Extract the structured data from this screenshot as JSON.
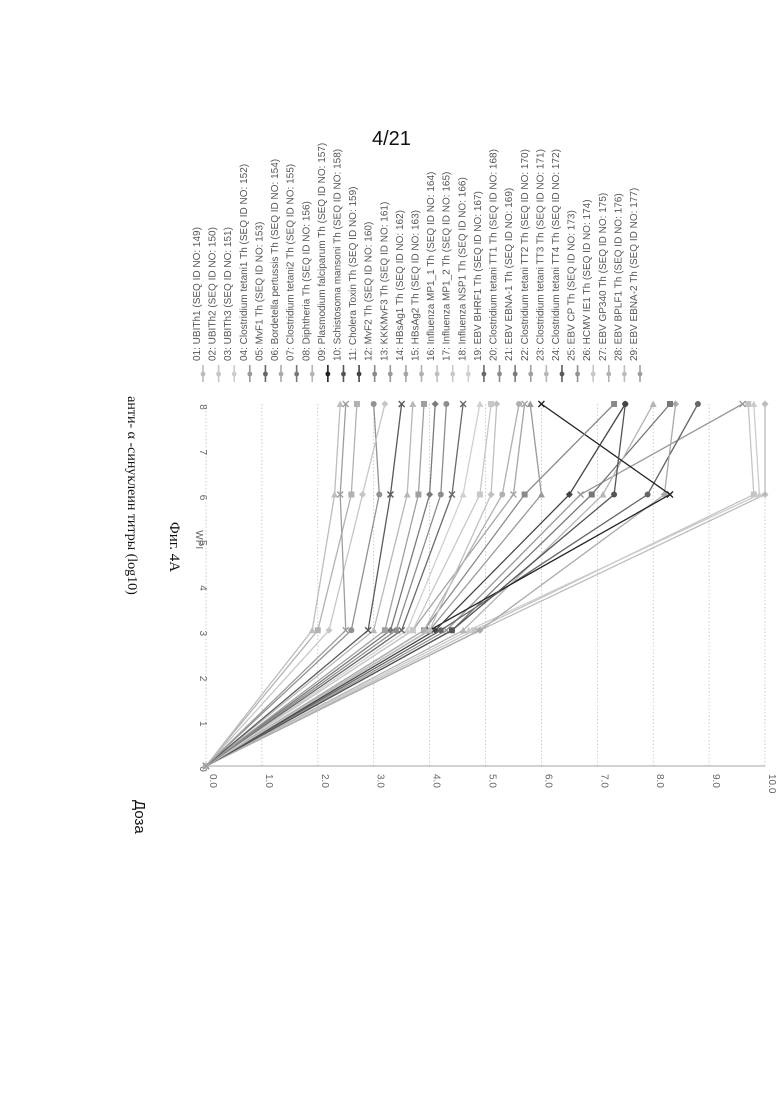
{
  "page": {
    "number": "4/21"
  },
  "chart_data": {
    "type": "line",
    "title": "Фиг. 4А",
    "xlabel": "WPI",
    "ylabel": "анти- α -синуклеин титры (log10)",
    "corner_label": "Доза",
    "xlim": [
      0,
      8
    ],
    "ylim": [
      0,
      10
    ],
    "x_ticks": [
      "0",
      "1",
      "2",
      "3",
      "4",
      "5",
      "6",
      "7",
      "8"
    ],
    "y_ticks": [
      "0.0",
      "1.0",
      "2.0",
      "3.0",
      "4.0",
      "5.0",
      "6.0",
      "7.0",
      "8.0",
      "9.0",
      "10.0"
    ],
    "grid": true,
    "legend_position": "right",
    "x": [
      0,
      3,
      6,
      8
    ],
    "series": [
      {
        "name": "01: UBITh1 (SEQ ID NO: 149)",
        "values": [
          0,
          4.9,
          10.0,
          10.0
        ],
        "color": "#bbbbbb"
      },
      {
        "name": "02: UBITh2 (SEQ ID NO: 150)",
        "values": [
          0,
          4.8,
          9.8,
          9.7
        ],
        "color": "#c4c4c4"
      },
      {
        "name": "03: UBITh3 (SEQ ID NO: 151)",
        "values": [
          0,
          4.7,
          9.9,
          9.8
        ],
        "color": "#cccccc"
      },
      {
        "name": "04: Clostridium tetani1 Th (SEQ ID NO: 152)",
        "values": [
          0,
          4.3,
          6.7,
          9.6
        ],
        "color": "#999999"
      },
      {
        "name": "05: MvF1 Th (SEQ ID NO: 153)",
        "values": [
          0,
          4.2,
          7.9,
          8.8
        ],
        "color": "#666666"
      },
      {
        "name": "06: Bordetella pertussis Th (SEQ ID NO: 154)",
        "values": [
          0,
          4.9,
          8.2,
          8.4
        ],
        "color": "#aaaaaa"
      },
      {
        "name": "07: Clostridium tetani2 Th (SEQ ID NO: 155)",
        "values": [
          0,
          4.4,
          6.9,
          8.3
        ],
        "color": "#777777"
      },
      {
        "name": "08: Diphtheria Th (SEQ ID NO: 156)",
        "values": [
          0,
          4.6,
          7.1,
          8.0
        ],
        "color": "#b5b5b5"
      },
      {
        "name": "09: Plasmodium falciparum Th (SEQ ID NO: 157)",
        "values": [
          0,
          4.0,
          8.3,
          6.0
        ],
        "color": "#222222"
      },
      {
        "name": "10: Schistosoma mansoni Th (SEQ ID NO: 158)",
        "values": [
          0,
          4.4,
          7.3,
          7.5
        ],
        "color": "#555555"
      },
      {
        "name": "11: Cholera Toxin Th (SEQ ID NO: 159)",
        "values": [
          0,
          4.1,
          6.5,
          7.5
        ],
        "color": "#444444"
      },
      {
        "name": "12: MvF2 Th (SEQ ID NO: 160)",
        "values": [
          0,
          3.9,
          5.7,
          7.3
        ],
        "color": "#8a8a8a"
      },
      {
        "name": "13: KKKMvF3 Th (SEQ ID NO: 161)",
        "values": [
          0,
          4.0,
          6.0,
          5.8
        ],
        "color": "#9a9a9a"
      },
      {
        "name": "14: HBsAg1 Th (SEQ ID NO: 162)",
        "values": [
          0,
          3.7,
          5.5,
          5.7
        ],
        "color": "#a5a5a5"
      },
      {
        "name": "15: HBsAg2 Th (SEQ ID NO: 163)",
        "values": [
          0,
          3.9,
          5.3,
          5.6
        ],
        "color": "#b0b0b0"
      },
      {
        "name": "16: Influenza MP1_1 Th (SEQ ID NO: 164)",
        "values": [
          0,
          4.0,
          5.1,
          5.2
        ],
        "color": "#c0c0c0"
      },
      {
        "name": "17: Influenza MP1_2 Th (SEQ ID NO: 165)",
        "values": [
          0,
          3.7,
          4.9,
          5.1
        ],
        "color": "#c8c8c8"
      },
      {
        "name": "18: Influenza NSP1 Th (SEQ ID NO: 166)",
        "values": [
          0,
          3.6,
          4.6,
          4.9
        ],
        "color": "#d0d0d0"
      },
      {
        "name": "19: EBV BHRF1 Th (SEQ ID NO: 167)",
        "values": [
          0,
          3.5,
          4.4,
          4.6
        ],
        "color": "#6a6a6a"
      },
      {
        "name": "20: Clostridium tetani TT1 Th (SEQ ID NO: 168)",
        "values": [
          0,
          3.4,
          4.2,
          4.3
        ],
        "color": "#8d8d8d"
      },
      {
        "name": "21: EBV EBNA-1 Th (SEQ ID NO: 169)",
        "values": [
          0,
          3.3,
          4.0,
          4.1
        ],
        "color": "#7a7a7a"
      },
      {
        "name": "22: Clostridium tetani TT2 Th (SEQ ID NO: 170)",
        "values": [
          0,
          3.2,
          3.8,
          3.9
        ],
        "color": "#a0a0a0"
      },
      {
        "name": "23: Clostridium tetani TT3 Th (SEQ ID NO: 171)",
        "values": [
          0,
          3.0,
          3.6,
          3.7
        ],
        "color": "#b8b8b8"
      },
      {
        "name": "24: Clostridium tetani TT4 Th (SEQ ID NO: 172)",
        "values": [
          0,
          2.9,
          3.3,
          3.5
        ],
        "color": "#5a5a5a"
      },
      {
        "name": "25: EBV CP Th (SEQ ID NO: 173)",
        "values": [
          0,
          2.6,
          3.1,
          3.0
        ],
        "color": "#929292"
      },
      {
        "name": "26: HCMV IE1 Th (SEQ ID NO: 174)",
        "values": [
          0,
          2.2,
          2.8,
          3.2
        ],
        "color": "#c6c6c6"
      },
      {
        "name": "27: EBV GP340 Th (SEQ ID NO: 175)",
        "values": [
          0,
          2.0,
          2.6,
          2.7
        ],
        "color": "#b2b2b2"
      },
      {
        "name": "28: EBV BPLF1 Th (SEQ ID NO: 176)",
        "values": [
          0,
          1.9,
          2.3,
          2.4
        ],
        "color": "#bdbdbd"
      },
      {
        "name": "29: EBV EBNA-2 Th (SEQ ID NO: 177)",
        "values": [
          0,
          2.5,
          2.4,
          2.5
        ],
        "color": "#9e9e9e"
      }
    ]
  }
}
